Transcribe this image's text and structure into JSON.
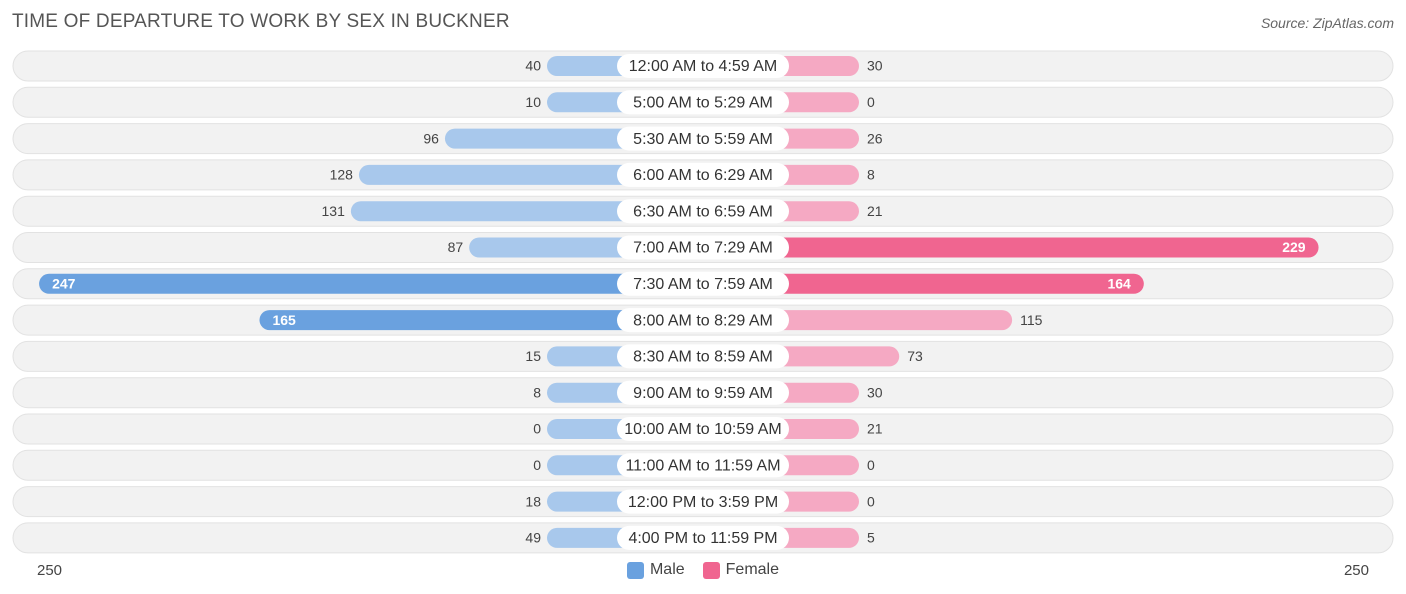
{
  "header": {
    "title": "TIME OF DEPARTURE TO WORK BY SEX IN BUCKNER",
    "source": "Source: ZipAtlas.com"
  },
  "legend": {
    "male_label": "Male",
    "female_label": "Female"
  },
  "axis": {
    "left_label": "250",
    "right_label": "250"
  },
  "colors": {
    "male_light": "#a8c8ec",
    "male_dark": "#6aa1df",
    "female_light": "#f5a9c3",
    "female_dark": "#f06590",
    "row_bg": "#f2f2f2"
  },
  "chart_data": {
    "type": "bar",
    "orientation": "diverging-horizontal",
    "title": "TIME OF DEPARTURE TO WORK BY SEX IN BUCKNER",
    "xlim": [
      -250,
      250
    ],
    "categories": [
      "12:00 AM to 4:59 AM",
      "5:00 AM to 5:29 AM",
      "5:30 AM to 5:59 AM",
      "6:00 AM to 6:29 AM",
      "6:30 AM to 6:59 AM",
      "7:00 AM to 7:29 AM",
      "7:30 AM to 7:59 AM",
      "8:00 AM to 8:29 AM",
      "8:30 AM to 8:59 AM",
      "9:00 AM to 9:59 AM",
      "10:00 AM to 10:59 AM",
      "11:00 AM to 11:59 AM",
      "12:00 PM to 3:59 PM",
      "4:00 PM to 11:59 PM"
    ],
    "series": [
      {
        "name": "Male",
        "values": [
          40,
          10,
          96,
          128,
          131,
          87,
          247,
          165,
          15,
          8,
          0,
          0,
          18,
          49
        ]
      },
      {
        "name": "Female",
        "values": [
          30,
          0,
          26,
          8,
          21,
          229,
          164,
          115,
          73,
          30,
          21,
          0,
          0,
          5
        ]
      }
    ],
    "legend_position": "bottom-center"
  }
}
